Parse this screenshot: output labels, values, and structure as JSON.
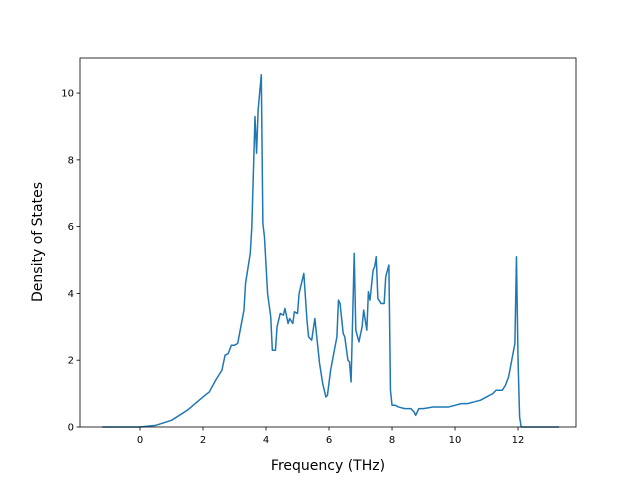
{
  "chart_data": {
    "type": "line",
    "x_label": "Frequency (THz)",
    "y_label": "Density of States",
    "series": [
      {
        "name": "DOS",
        "color": "#1f77b4",
        "x": [
          -1.2,
          0,
          0.5,
          1,
          1.5,
          2,
          2.2,
          2.4,
          2.6,
          2.7,
          2.8,
          2.9,
          3.0,
          3.1,
          3.2,
          3.3,
          3.35,
          3.5,
          3.55,
          3.65,
          3.7,
          3.75,
          3.85,
          3.9,
          3.95,
          4.05,
          4.15,
          4.2,
          4.3,
          4.35,
          4.45,
          4.55,
          4.6,
          4.7,
          4.75,
          4.85,
          4.9,
          5.0,
          5.05,
          5.15,
          5.2,
          5.3,
          5.35,
          5.45,
          5.55,
          5.6,
          5.7,
          5.8,
          5.9,
          5.95,
          6.05,
          6.15,
          6.25,
          6.3,
          6.35,
          6.45,
          6.5,
          6.6,
          6.65,
          6.7,
          6.8,
          6.85,
          6.95,
          7.05,
          7.1,
          7.2,
          7.25,
          7.3,
          7.4,
          7.45,
          7.5,
          7.55,
          7.65,
          7.75,
          7.8,
          7.9,
          7.95,
          8.0,
          8.1,
          8.2,
          8.4,
          8.6,
          8.7,
          8.75,
          8.85,
          9.0,
          9.3,
          9.5,
          9.8,
          10.0,
          10.2,
          10.4,
          10.6,
          10.8,
          11.0,
          11.2,
          11.3,
          11.5,
          11.6,
          11.7,
          11.8,
          11.9,
          11.95,
          12.0,
          12.05,
          12.1,
          13.3
        ],
        "values": [
          0,
          0,
          0.05,
          0.2,
          0.5,
          0.9,
          1.05,
          1.4,
          1.7,
          2.15,
          2.2,
          2.45,
          2.45,
          2.5,
          3.0,
          3.5,
          4.3,
          5.2,
          6.0,
          9.3,
          8.2,
          9.5,
          10.55,
          6.1,
          5.7,
          4.0,
          3.3,
          2.3,
          2.3,
          3.0,
          3.4,
          3.35,
          3.55,
          3.1,
          3.25,
          3.1,
          3.45,
          3.4,
          4.0,
          4.4,
          4.6,
          3.2,
          2.7,
          2.6,
          3.25,
          2.8,
          1.9,
          1.3,
          0.9,
          0.95,
          1.7,
          2.2,
          2.7,
          3.8,
          3.7,
          2.8,
          2.7,
          2.0,
          1.95,
          1.35,
          5.2,
          2.9,
          2.55,
          3.0,
          3.5,
          2.9,
          4.05,
          3.8,
          4.7,
          4.8,
          5.1,
          3.85,
          3.7,
          3.7,
          4.5,
          4.85,
          1.1,
          0.65,
          0.65,
          0.6,
          0.55,
          0.55,
          0.45,
          0.35,
          0.55,
          0.55,
          0.6,
          0.6,
          0.6,
          0.65,
          0.7,
          0.7,
          0.75,
          0.8,
          0.9,
          1.0,
          1.1,
          1.1,
          1.25,
          1.5,
          2.0,
          2.5,
          5.1,
          2.0,
          0.3,
          0.0,
          0
        ]
      }
    ],
    "xlim": [
      -1.905,
      13.84
    ],
    "ylim": [
      0,
      11.05
    ],
    "xticks": [
      0,
      2,
      4,
      6,
      8,
      10,
      12
    ],
    "yticks": [
      0,
      2,
      4,
      6,
      8,
      10
    ]
  }
}
